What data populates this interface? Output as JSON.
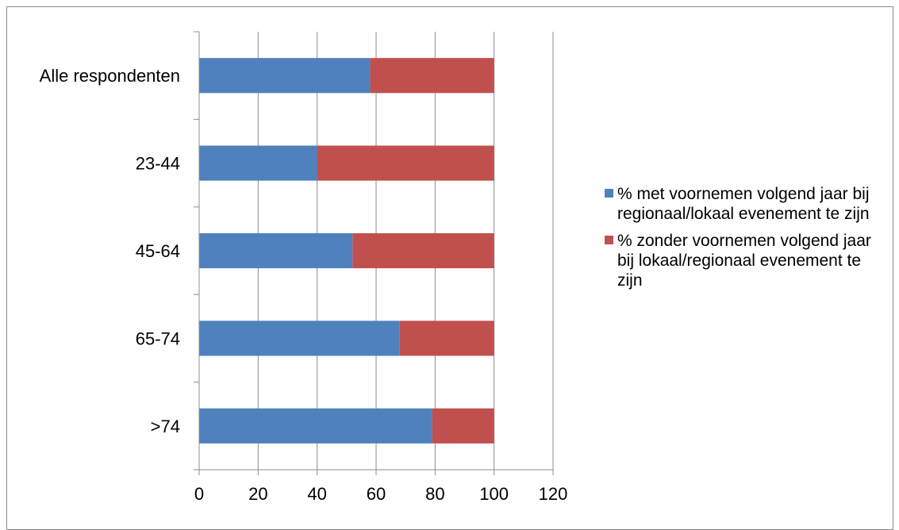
{
  "chart_data": {
    "type": "bar",
    "orientation": "horizontal",
    "stacked": true,
    "title": "",
    "xlabel": "",
    "ylabel": "",
    "categories": [
      "Alle respondenten",
      "23-44",
      "45-64",
      "65-74",
      ">74"
    ],
    "xlim": [
      0,
      120
    ],
    "xticks": [
      "0",
      "20",
      "40",
      "60",
      "80",
      "100",
      "120"
    ],
    "grid": "vertical",
    "legend_position": "right",
    "series": [
      {
        "name": "% met voornemen volgend jaar bij regionaal/lokaal evenement te zijn",
        "color": "#4f81bd",
        "values": [
          58,
          40,
          52,
          68,
          79
        ]
      },
      {
        "name": "% zonder voornemen volgend jaar bij lokaal/regionaal evenement te zijn",
        "color": "#c0504d",
        "values": [
          42,
          60,
          48,
          32,
          21
        ]
      }
    ]
  }
}
